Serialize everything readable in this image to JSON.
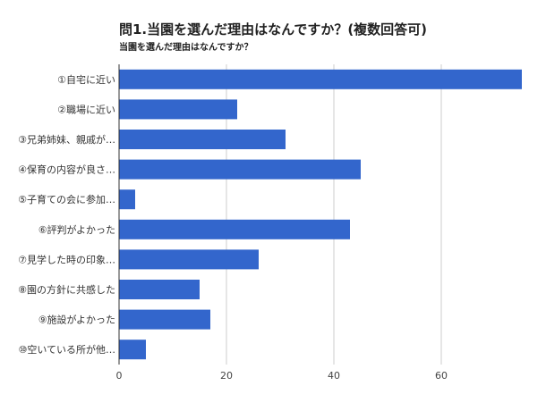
{
  "chart_data": {
    "type": "bar",
    "orientation": "horizontal",
    "title": "問1.当園を選んだ理由はなんですか？(複数回答可)",
    "subtitle": "当園を選んだ理由はなんですか？",
    "categories": [
      "①自宅に近い",
      "②職場に近い",
      "③兄弟姉妹、親戚が…",
      "④保育の内容が良さ…",
      "⑤子育ての会に参加…",
      "⑥評判がよかった",
      "⑦見学した時の印象…",
      "⑧園の方針に共感した",
      "⑨施設がよかった",
      "⑩空いている所が他…"
    ],
    "values": [
      75,
      22,
      31,
      45,
      3,
      43,
      26,
      15,
      17,
      5
    ],
    "xlim": [
      0,
      75
    ],
    "xticks": [
      0,
      20,
      40,
      60
    ],
    "grid": true,
    "bar_color": "#3366cc"
  }
}
